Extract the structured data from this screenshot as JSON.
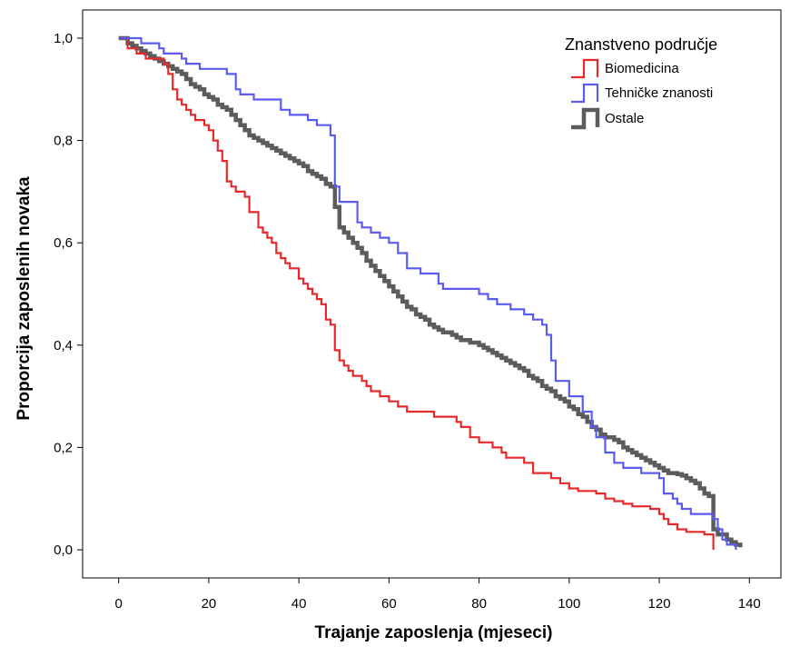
{
  "chart_data": {
    "type": "line",
    "xlabel": "Trajanje zaposlenja (mjeseci)",
    "ylabel": "Proporcija zaposlenih novaka",
    "xlim": [
      -8,
      147
    ],
    "ylim": [
      -0.055,
      1.055
    ],
    "xticks": [
      0,
      20,
      40,
      60,
      80,
      100,
      120,
      140
    ],
    "xtick_labels": [
      "0",
      "20",
      "40",
      "60",
      "80",
      "100",
      "120",
      "140"
    ],
    "yticks": [
      0,
      0.2,
      0.4,
      0.6,
      0.8,
      1.0
    ],
    "ytick_labels": [
      "0,0",
      "0,2",
      "0,4",
      "0,6",
      "0,8",
      "1,0"
    ],
    "grid": false,
    "legend": {
      "title": "Znanstveno područje",
      "position": "top-right"
    },
    "step": true,
    "series": [
      {
        "name": "Biomedicina",
        "color": "#e8292b",
        "points": [
          [
            0,
            1.0
          ],
          [
            2,
            0.98
          ],
          [
            4,
            0.97
          ],
          [
            6,
            0.96
          ],
          [
            8,
            0.96
          ],
          [
            10,
            0.95
          ],
          [
            11,
            0.93
          ],
          [
            12,
            0.9
          ],
          [
            13,
            0.88
          ],
          [
            14,
            0.87
          ],
          [
            15,
            0.86
          ],
          [
            16,
            0.85
          ],
          [
            17,
            0.84
          ],
          [
            19,
            0.83
          ],
          [
            20,
            0.82
          ],
          [
            21,
            0.8
          ],
          [
            22,
            0.78
          ],
          [
            23,
            0.76
          ],
          [
            24,
            0.72
          ],
          [
            25,
            0.71
          ],
          [
            26,
            0.7
          ],
          [
            27,
            0.7
          ],
          [
            28,
            0.69
          ],
          [
            29,
            0.68
          ],
          [
            29,
            0.66
          ],
          [
            31,
            0.63
          ],
          [
            32,
            0.62
          ],
          [
            33,
            0.61
          ],
          [
            34,
            0.6
          ],
          [
            35,
            0.58
          ],
          [
            36,
            0.57
          ],
          [
            37,
            0.56
          ],
          [
            38,
            0.55
          ],
          [
            39,
            0.55
          ],
          [
            40,
            0.53
          ],
          [
            41,
            0.52
          ],
          [
            42,
            0.51
          ],
          [
            43,
            0.5
          ],
          [
            44,
            0.49
          ],
          [
            45,
            0.48
          ],
          [
            46,
            0.45
          ],
          [
            47,
            0.44
          ],
          [
            48,
            0.42
          ],
          [
            48,
            0.39
          ],
          [
            49,
            0.37
          ],
          [
            50,
            0.36
          ],
          [
            51,
            0.35
          ],
          [
            52,
            0.34
          ],
          [
            54,
            0.33
          ],
          [
            55,
            0.32
          ],
          [
            56,
            0.31
          ],
          [
            58,
            0.3
          ],
          [
            60,
            0.29
          ],
          [
            62,
            0.28
          ],
          [
            64,
            0.27
          ],
          [
            68,
            0.27
          ],
          [
            70,
            0.26
          ],
          [
            75,
            0.25
          ],
          [
            76,
            0.24
          ],
          [
            78,
            0.22
          ],
          [
            80,
            0.21
          ],
          [
            83,
            0.2
          ],
          [
            85,
            0.19
          ],
          [
            86,
            0.18
          ],
          [
            90,
            0.17
          ],
          [
            92,
            0.15
          ],
          [
            96,
            0.14
          ],
          [
            98,
            0.13
          ],
          [
            100,
            0.12
          ],
          [
            102,
            0.115
          ],
          [
            106,
            0.11
          ],
          [
            108,
            0.1
          ],
          [
            110,
            0.095
          ],
          [
            112,
            0.09
          ],
          [
            114,
            0.085
          ],
          [
            118,
            0.08
          ],
          [
            120,
            0.07
          ],
          [
            121,
            0.06
          ],
          [
            122,
            0.05
          ],
          [
            124,
            0.04
          ],
          [
            126,
            0.035
          ],
          [
            128,
            0.035
          ],
          [
            130,
            0.03
          ],
          [
            131,
            0.03
          ],
          [
            132,
            0.0
          ]
        ]
      },
      {
        "name": "Tehničke znanosti",
        "color": "#5a5cf0",
        "points": [
          [
            0,
            1.0
          ],
          [
            5,
            0.99
          ],
          [
            9,
            0.98
          ],
          [
            10,
            0.97
          ],
          [
            14,
            0.96
          ],
          [
            15,
            0.95
          ],
          [
            18,
            0.94
          ],
          [
            24,
            0.93
          ],
          [
            26,
            0.9
          ],
          [
            27,
            0.89
          ],
          [
            30,
            0.88
          ],
          [
            36,
            0.86
          ],
          [
            38,
            0.85
          ],
          [
            42,
            0.84
          ],
          [
            44,
            0.83
          ],
          [
            47,
            0.81
          ],
          [
            48,
            0.71
          ],
          [
            49,
            0.68
          ],
          [
            53,
            0.64
          ],
          [
            54,
            0.63
          ],
          [
            56,
            0.62
          ],
          [
            58,
            0.61
          ],
          [
            60,
            0.6
          ],
          [
            62,
            0.58
          ],
          [
            64,
            0.55
          ],
          [
            67,
            0.54
          ],
          [
            71,
            0.52
          ],
          [
            72,
            0.51
          ],
          [
            80,
            0.5
          ],
          [
            82,
            0.49
          ],
          [
            84,
            0.48
          ],
          [
            87,
            0.47
          ],
          [
            90,
            0.46
          ],
          [
            92,
            0.45
          ],
          [
            94,
            0.44
          ],
          [
            95,
            0.42
          ],
          [
            96,
            0.37
          ],
          [
            97,
            0.33
          ],
          [
            100,
            0.3
          ],
          [
            103,
            0.27
          ],
          [
            105,
            0.24
          ],
          [
            106,
            0.22
          ],
          [
            108,
            0.19
          ],
          [
            110,
            0.17
          ],
          [
            112,
            0.16
          ],
          [
            116,
            0.15
          ],
          [
            120,
            0.14
          ],
          [
            121,
            0.11
          ],
          [
            123,
            0.1
          ],
          [
            124,
            0.09
          ],
          [
            125,
            0.08
          ],
          [
            127,
            0.07
          ],
          [
            132,
            0.06
          ],
          [
            133,
            0.04
          ],
          [
            134,
            0.02
          ],
          [
            135,
            0.01
          ],
          [
            137,
            0.0
          ]
        ]
      },
      {
        "name": "Ostale",
        "color": "#5c5c5c",
        "points": [
          [
            0,
            1.0
          ],
          [
            2,
            0.99
          ],
          [
            3,
            0.985
          ],
          [
            4,
            0.98
          ],
          [
            5,
            0.975
          ],
          [
            6,
            0.97
          ],
          [
            7,
            0.965
          ],
          [
            8,
            0.96
          ],
          [
            9,
            0.955
          ],
          [
            10,
            0.95
          ],
          [
            11,
            0.945
          ],
          [
            12,
            0.94
          ],
          [
            13,
            0.935
          ],
          [
            14,
            0.93
          ],
          [
            15,
            0.92
          ],
          [
            16,
            0.91
          ],
          [
            17,
            0.905
          ],
          [
            18,
            0.9
          ],
          [
            19,
            0.89
          ],
          [
            20,
            0.885
          ],
          [
            21,
            0.88
          ],
          [
            22,
            0.87
          ],
          [
            23,
            0.865
          ],
          [
            24,
            0.86
          ],
          [
            25,
            0.85
          ],
          [
            26,
            0.84
          ],
          [
            27,
            0.83
          ],
          [
            28,
            0.82
          ],
          [
            29,
            0.81
          ],
          [
            30,
            0.805
          ],
          [
            31,
            0.8
          ],
          [
            32,
            0.795
          ],
          [
            33,
            0.79
          ],
          [
            34,
            0.785
          ],
          [
            35,
            0.78
          ],
          [
            36,
            0.775
          ],
          [
            37,
            0.77
          ],
          [
            38,
            0.765
          ],
          [
            39,
            0.76
          ],
          [
            40,
            0.755
          ],
          [
            41,
            0.75
          ],
          [
            42,
            0.74
          ],
          [
            43,
            0.735
          ],
          [
            44,
            0.73
          ],
          [
            45,
            0.725
          ],
          [
            46,
            0.715
          ],
          [
            47,
            0.71
          ],
          [
            48,
            0.67
          ],
          [
            49,
            0.63
          ],
          [
            50,
            0.62
          ],
          [
            51,
            0.61
          ],
          [
            52,
            0.6
          ],
          [
            53,
            0.59
          ],
          [
            54,
            0.58
          ],
          [
            55,
            0.565
          ],
          [
            56,
            0.555
          ],
          [
            57,
            0.545
          ],
          [
            58,
            0.535
          ],
          [
            59,
            0.525
          ],
          [
            60,
            0.515
          ],
          [
            61,
            0.505
          ],
          [
            62,
            0.495
          ],
          [
            63,
            0.485
          ],
          [
            64,
            0.475
          ],
          [
            65,
            0.47
          ],
          [
            66,
            0.46
          ],
          [
            67,
            0.455
          ],
          [
            68,
            0.45
          ],
          [
            69,
            0.44
          ],
          [
            70,
            0.435
          ],
          [
            71,
            0.43
          ],
          [
            72,
            0.425
          ],
          [
            74,
            0.42
          ],
          [
            75,
            0.415
          ],
          [
            76,
            0.41
          ],
          [
            78,
            0.405
          ],
          [
            80,
            0.4
          ],
          [
            81,
            0.395
          ],
          [
            82,
            0.39
          ],
          [
            83,
            0.385
          ],
          [
            84,
            0.38
          ],
          [
            85,
            0.375
          ],
          [
            86,
            0.37
          ],
          [
            87,
            0.365
          ],
          [
            88,
            0.36
          ],
          [
            89,
            0.355
          ],
          [
            90,
            0.35
          ],
          [
            91,
            0.34
          ],
          [
            92,
            0.335
          ],
          [
            93,
            0.33
          ],
          [
            94,
            0.32
          ],
          [
            95,
            0.315
          ],
          [
            96,
            0.31
          ],
          [
            97,
            0.3
          ],
          [
            98,
            0.295
          ],
          [
            99,
            0.29
          ],
          [
            100,
            0.28
          ],
          [
            101,
            0.275
          ],
          [
            102,
            0.265
          ],
          [
            103,
            0.26
          ],
          [
            104,
            0.25
          ],
          [
            105,
            0.24
          ],
          [
            106,
            0.235
          ],
          [
            107,
            0.225
          ],
          [
            108,
            0.22
          ],
          [
            110,
            0.215
          ],
          [
            111,
            0.21
          ],
          [
            112,
            0.2
          ],
          [
            113,
            0.195
          ],
          [
            114,
            0.19
          ],
          [
            115,
            0.185
          ],
          [
            116,
            0.18
          ],
          [
            117,
            0.175
          ],
          [
            118,
            0.17
          ],
          [
            119,
            0.165
          ],
          [
            120,
            0.16
          ],
          [
            121,
            0.155
          ],
          [
            122,
            0.15
          ],
          [
            124,
            0.148
          ],
          [
            125,
            0.145
          ],
          [
            126,
            0.14
          ],
          [
            127,
            0.135
          ],
          [
            128,
            0.13
          ],
          [
            129,
            0.12
          ],
          [
            130,
            0.11
          ],
          [
            131,
            0.105
          ],
          [
            132,
            0.1
          ],
          [
            132,
            0.04
          ],
          [
            133,
            0.03
          ],
          [
            135,
            0.02
          ],
          [
            136,
            0.015
          ],
          [
            137,
            0.01
          ],
          [
            138,
            0.005
          ]
        ]
      }
    ]
  }
}
